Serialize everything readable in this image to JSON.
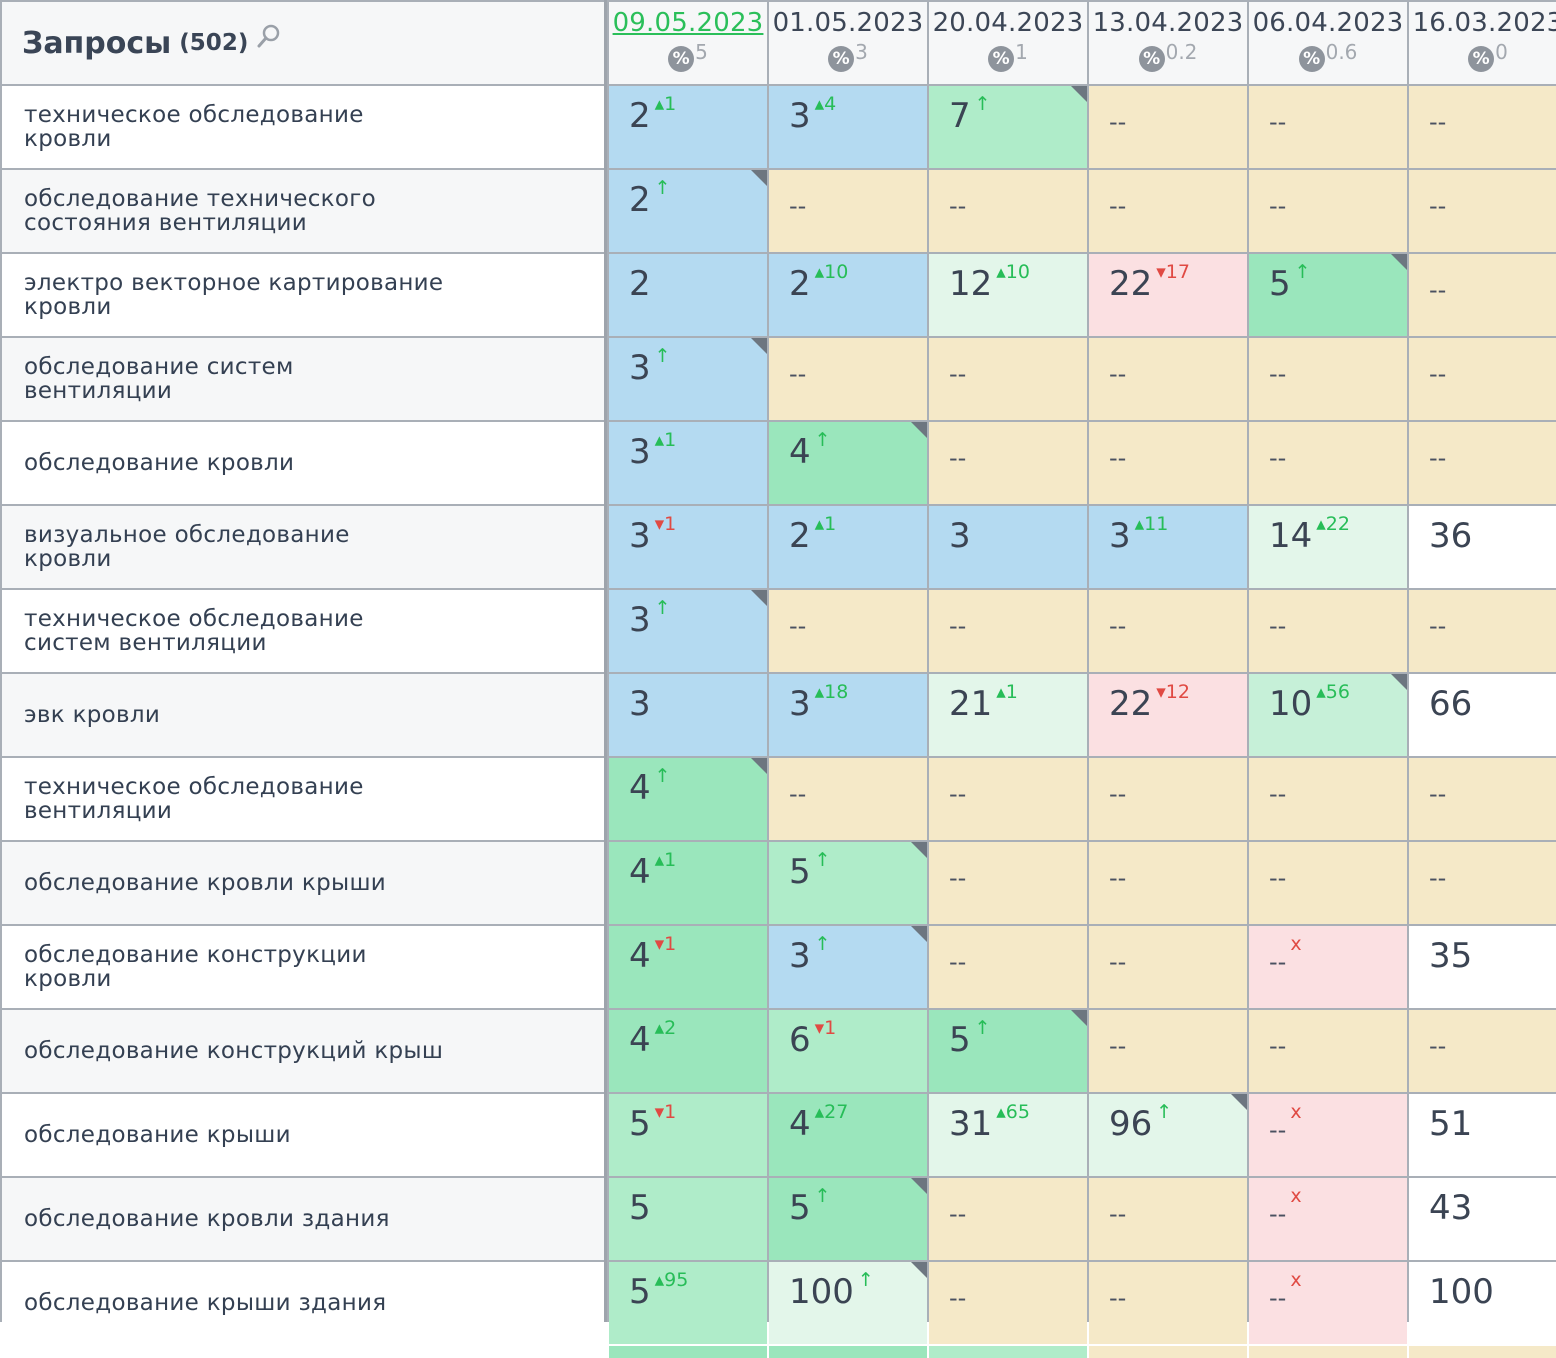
{
  "header": {
    "title": "Запросы",
    "count": "(502)",
    "search_icon": "search-icon"
  },
  "dates": [
    {
      "date": "09.05.2023",
      "pct": "5",
      "active": true
    },
    {
      "date": "01.05.2023",
      "pct": "3",
      "active": false
    },
    {
      "date": "20.04.2023",
      "pct": "1",
      "active": false
    },
    {
      "date": "13.04.2023",
      "pct": "0.2",
      "active": false
    },
    {
      "date": "06.04.2023",
      "pct": "0.6",
      "active": false
    },
    {
      "date": "16.03.2023",
      "pct": "0",
      "active": false
    }
  ],
  "percent_badge": "%",
  "colors": {
    "blue": "#b4daf1",
    "green": "#9ae6bc",
    "mint": "#afecc9",
    "lightgreen": "#c6f0d8",
    "pale": "#e3f6ea",
    "yellow": "#f5e9c8",
    "pink": "#fbe0e2",
    "white": "#ffffff",
    "up": "#27bd58",
    "down": "#e04a43",
    "active_date": "#2bbf5a"
  },
  "rows": [
    {
      "query": [
        "техническое обследование",
        "кровли"
      ],
      "cells": [
        {
          "pos": "2",
          "delta": "▴1",
          "dir": "up",
          "color": "blue"
        },
        {
          "pos": "3",
          "delta": "▴4",
          "dir": "up",
          "color": "blue"
        },
        {
          "pos": "7",
          "delta": "↑",
          "dir": "up",
          "color": "mint",
          "corner": true
        },
        {
          "pos": "--",
          "color": "yellow"
        },
        {
          "pos": "--",
          "color": "yellow"
        },
        {
          "pos": "--",
          "color": "yellow"
        }
      ]
    },
    {
      "query": [
        "обследование технического",
        "состояния вентиляции"
      ],
      "cells": [
        {
          "pos": "2",
          "delta": "↑",
          "dir": "up",
          "color": "blue",
          "corner": true
        },
        {
          "pos": "--",
          "color": "yellow"
        },
        {
          "pos": "--",
          "color": "yellow"
        },
        {
          "pos": "--",
          "color": "yellow"
        },
        {
          "pos": "--",
          "color": "yellow"
        },
        {
          "pos": "--",
          "color": "yellow"
        }
      ]
    },
    {
      "query": [
        "электро векторное картирование",
        "кровли"
      ],
      "cells": [
        {
          "pos": "2",
          "color": "blue"
        },
        {
          "pos": "2",
          "delta": "▴10",
          "dir": "up",
          "color": "blue"
        },
        {
          "pos": "12",
          "delta": "▴10",
          "dir": "up",
          "color": "pale"
        },
        {
          "pos": "22",
          "delta": "▾17",
          "dir": "down",
          "color": "pink"
        },
        {
          "pos": "5",
          "delta": "↑",
          "dir": "up",
          "color": "green",
          "corner": true
        },
        {
          "pos": "--",
          "color": "yellow"
        }
      ]
    },
    {
      "query": [
        "обследование систем",
        "вентиляции"
      ],
      "cells": [
        {
          "pos": "3",
          "delta": "↑",
          "dir": "up",
          "color": "blue",
          "corner": true
        },
        {
          "pos": "--",
          "color": "yellow"
        },
        {
          "pos": "--",
          "color": "yellow"
        },
        {
          "pos": "--",
          "color": "yellow"
        },
        {
          "pos": "--",
          "color": "yellow"
        },
        {
          "pos": "--",
          "color": "yellow"
        }
      ]
    },
    {
      "query": [
        "обследование кровли"
      ],
      "cells": [
        {
          "pos": "3",
          "delta": "▴1",
          "dir": "up",
          "color": "blue"
        },
        {
          "pos": "4",
          "delta": "↑",
          "dir": "up",
          "color": "green",
          "corner": true
        },
        {
          "pos": "--",
          "color": "yellow"
        },
        {
          "pos": "--",
          "color": "yellow"
        },
        {
          "pos": "--",
          "color": "yellow"
        },
        {
          "pos": "--",
          "color": "yellow"
        }
      ]
    },
    {
      "query": [
        "визуальное обследование",
        "кровли"
      ],
      "cells": [
        {
          "pos": "3",
          "delta": "▾1",
          "dir": "down",
          "color": "blue"
        },
        {
          "pos": "2",
          "delta": "▴1",
          "dir": "up",
          "color": "blue"
        },
        {
          "pos": "3",
          "color": "blue"
        },
        {
          "pos": "3",
          "delta": "▴11",
          "dir": "up",
          "color": "blue"
        },
        {
          "pos": "14",
          "delta": "▴22",
          "dir": "up",
          "color": "pale"
        },
        {
          "pos": "36",
          "color": "white"
        }
      ]
    },
    {
      "query": [
        "техническое обследование",
        "систем вентиляции"
      ],
      "cells": [
        {
          "pos": "3",
          "delta": "↑",
          "dir": "up",
          "color": "blue",
          "corner": true
        },
        {
          "pos": "--",
          "color": "yellow"
        },
        {
          "pos": "--",
          "color": "yellow"
        },
        {
          "pos": "--",
          "color": "yellow"
        },
        {
          "pos": "--",
          "color": "yellow"
        },
        {
          "pos": "--",
          "color": "yellow"
        }
      ]
    },
    {
      "query": [
        "эвк кровли"
      ],
      "cells": [
        {
          "pos": "3",
          "color": "blue"
        },
        {
          "pos": "3",
          "delta": "▴18",
          "dir": "up",
          "color": "blue"
        },
        {
          "pos": "21",
          "delta": "▴1",
          "dir": "up",
          "color": "pale"
        },
        {
          "pos": "22",
          "delta": "▾12",
          "dir": "down",
          "color": "pink"
        },
        {
          "pos": "10",
          "delta": "▴56",
          "dir": "up",
          "color": "lightgreen",
          "corner": true
        },
        {
          "pos": "66",
          "color": "white"
        }
      ]
    },
    {
      "query": [
        "техническое обследование",
        "вентиляции"
      ],
      "cells": [
        {
          "pos": "4",
          "delta": "↑",
          "dir": "up",
          "color": "green",
          "corner": true
        },
        {
          "pos": "--",
          "color": "yellow"
        },
        {
          "pos": "--",
          "color": "yellow"
        },
        {
          "pos": "--",
          "color": "yellow"
        },
        {
          "pos": "--",
          "color": "yellow"
        },
        {
          "pos": "--",
          "color": "yellow"
        }
      ]
    },
    {
      "query": [
        "обследование кровли крыши"
      ],
      "cells": [
        {
          "pos": "4",
          "delta": "▴1",
          "dir": "up",
          "color": "green"
        },
        {
          "pos": "5",
          "delta": "↑",
          "dir": "up",
          "color": "mint",
          "corner": true
        },
        {
          "pos": "--",
          "color": "yellow"
        },
        {
          "pos": "--",
          "color": "yellow"
        },
        {
          "pos": "--",
          "color": "yellow"
        },
        {
          "pos": "--",
          "color": "yellow"
        }
      ]
    },
    {
      "query": [
        "обследование конструкции",
        "кровли"
      ],
      "cells": [
        {
          "pos": "4",
          "delta": "▾1",
          "dir": "down",
          "color": "green"
        },
        {
          "pos": "3",
          "delta": "↑",
          "dir": "up",
          "color": "blue",
          "corner": true
        },
        {
          "pos": "--",
          "color": "yellow"
        },
        {
          "pos": "--",
          "color": "yellow"
        },
        {
          "pos": "--",
          "delta": "x",
          "dir": "x",
          "color": "pink"
        },
        {
          "pos": "35",
          "color": "white"
        }
      ]
    },
    {
      "query": [
        "обследование конструкций крыш"
      ],
      "cells": [
        {
          "pos": "4",
          "delta": "▴2",
          "dir": "up",
          "color": "green"
        },
        {
          "pos": "6",
          "delta": "▾1",
          "dir": "down",
          "color": "mint"
        },
        {
          "pos": "5",
          "delta": "↑",
          "dir": "up",
          "color": "green",
          "corner": true
        },
        {
          "pos": "--",
          "color": "yellow"
        },
        {
          "pos": "--",
          "color": "yellow"
        },
        {
          "pos": "--",
          "color": "yellow"
        }
      ]
    },
    {
      "query": [
        "обследование крыши"
      ],
      "cells": [
        {
          "pos": "5",
          "delta": "▾1",
          "dir": "down",
          "color": "mint"
        },
        {
          "pos": "4",
          "delta": "▴27",
          "dir": "up",
          "color": "green"
        },
        {
          "pos": "31",
          "delta": "▴65",
          "dir": "up",
          "color": "pale"
        },
        {
          "pos": "96",
          "delta": "↑",
          "dir": "up",
          "color": "pale",
          "corner": true
        },
        {
          "pos": "--",
          "delta": "x",
          "dir": "x",
          "color": "pink"
        },
        {
          "pos": "51",
          "color": "white"
        }
      ]
    },
    {
      "query": [
        "обследование кровли здания"
      ],
      "cells": [
        {
          "pos": "5",
          "color": "mint"
        },
        {
          "pos": "5",
          "delta": "↑",
          "dir": "up",
          "color": "green",
          "corner": true
        },
        {
          "pos": "--",
          "color": "yellow"
        },
        {
          "pos": "--",
          "color": "yellow"
        },
        {
          "pos": "--",
          "delta": "x",
          "dir": "x",
          "color": "pink"
        },
        {
          "pos": "43",
          "color": "white"
        }
      ]
    },
    {
      "query": [
        "обследование крыши здания"
      ],
      "cells": [
        {
          "pos": "5",
          "delta": "▴95",
          "dir": "up",
          "color": "mint"
        },
        {
          "pos": "100",
          "delta": "↑",
          "dir": "up",
          "color": "pale",
          "corner": true
        },
        {
          "pos": "--",
          "color": "yellow"
        },
        {
          "pos": "--",
          "color": "yellow"
        },
        {
          "pos": "--",
          "delta": "x",
          "dir": "x",
          "color": "pink"
        },
        {
          "pos": "100",
          "color": "white"
        }
      ]
    }
  ],
  "partial_row": [
    "green",
    "green",
    "mint",
    "yellow",
    "yellow",
    "yellow"
  ]
}
